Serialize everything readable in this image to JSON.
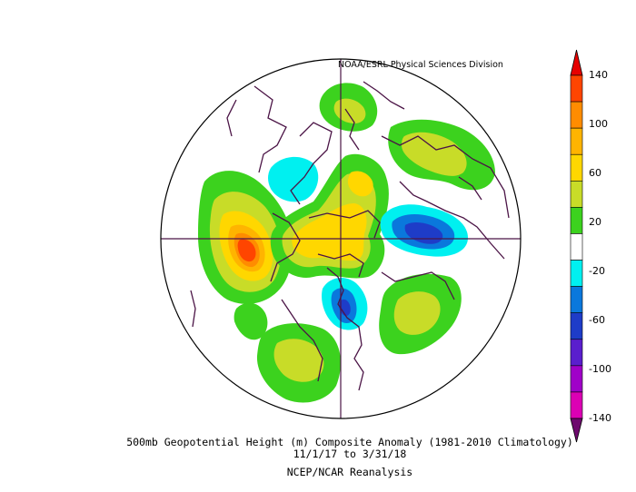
{
  "credit": "NOAA/ESRL Physical Sciences Division",
  "caption": {
    "line1": "500mb Geopotential Height (m) Composite Anomaly (1981-2010 Climatology)",
    "line2": "11/1/17  to 3/31/18",
    "line3": "NCEP/NCAR Reanalysis"
  },
  "colorbar": {
    "ticks": [
      "140",
      "100",
      "60",
      "20",
      "-20",
      "-60",
      "-100",
      "-140"
    ],
    "bands": [
      {
        "range": "above 140",
        "color": "#e60000"
      },
      {
        "range": "120 to 140",
        "color": "#ff4500"
      },
      {
        "range": "100 to 120",
        "color": "#ff8c00"
      },
      {
        "range": "80 to 100",
        "color": "#ffb400"
      },
      {
        "range": "60 to 80",
        "color": "#ffd700"
      },
      {
        "range": "40 to 60",
        "color": "#c8dc28"
      },
      {
        "range": "20 to 40",
        "color": "#3cd21e"
      },
      {
        "range": "-20 to 20",
        "color": "#ffffff"
      },
      {
        "range": "-40 to -20",
        "color": "#00f0f0"
      },
      {
        "range": "-60 to -40",
        "color": "#0a78dc"
      },
      {
        "range": "-80 to -60",
        "color": "#1e3cc8"
      },
      {
        "range": "-100 to -80",
        "color": "#5a1ecd"
      },
      {
        "range": "-120 to -100",
        "color": "#a000c8"
      },
      {
        "range": "-140 to -120",
        "color": "#dc00b4"
      },
      {
        "range": "below -140",
        "color": "#6e0a6e"
      }
    ]
  },
  "map": {
    "projection": "north polar stereographic",
    "variable": "500mb geopotential height anomaly",
    "coastline_color": "#4b1446",
    "anomaly_features": [
      {
        "region": "North Pacific / Alaska",
        "peak": 140
      },
      {
        "region": "Western North America to Arctic",
        "peak": 60
      },
      {
        "region": "Siberia",
        "peak": -60
      },
      {
        "region": "Eastern Canada / Baffin",
        "peak": -60
      },
      {
        "region": "Western Europe / Atlantic",
        "peak": -20
      },
      {
        "region": "North Atlantic",
        "peak": 60
      },
      {
        "region": "Central Asia",
        "peak": 60
      },
      {
        "region": "Eastern Pacific subtropics",
        "peak": 60
      }
    ]
  }
}
